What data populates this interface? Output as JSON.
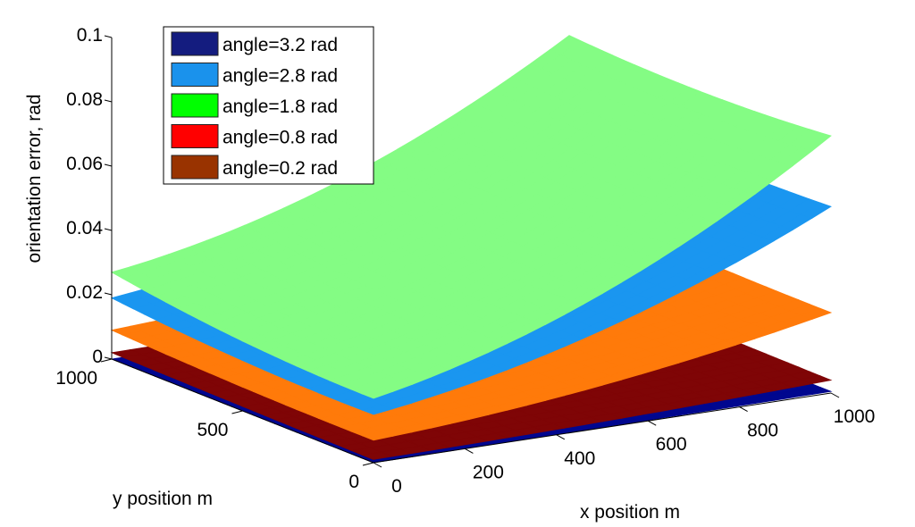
{
  "chart_data": {
    "type": "surface",
    "title": "",
    "xlabel": "x position m",
    "ylabel": "y position m",
    "zlabel": "orientation error, rad",
    "xlim": [
      0,
      1000
    ],
    "ylim": [
      0,
      1000
    ],
    "zlim": [
      0,
      0.1
    ],
    "x_ticks": [
      "0",
      "200",
      "400",
      "600",
      "800",
      "1000"
    ],
    "x_tick_values": [
      0,
      200,
      400,
      600,
      800,
      1000
    ],
    "y_ticks": [
      "0",
      "500",
      "1000"
    ],
    "y_tick_values": [
      0,
      500,
      1000
    ],
    "z_ticks": [
      "0",
      "0.02",
      "0.04",
      "0.06",
      "0.08",
      "0.1"
    ],
    "z_tick_values": [
      0,
      0.02,
      0.04,
      0.06,
      0.08,
      0.1
    ],
    "legend_position": "top-left",
    "series": [
      {
        "name": "angle=3.2 rad",
        "legend_color": "#141c7f",
        "surface_color": "#00078f",
        "corner_z": {
          "x0y0": 0.0,
          "x1000y0": 0.0005,
          "x0y1000": 0.0,
          "x1000y1000": 0.0005
        }
      },
      {
        "name": "angle=2.8 rad",
        "legend_color": "#1a92ec",
        "surface_color": "#1a96f0",
        "corner_z": {
          "x0y0": 0.015,
          "x1000y0": 0.058,
          "x0y1000": 0.019,
          "x1000y1000": 0.059
        }
      },
      {
        "name": "angle=1.8 rad",
        "legend_color": "#00ff00",
        "surface_color": "#84fc84",
        "corner_z": {
          "x0y0": 0.02,
          "x1000y0": 0.08,
          "x0y1000": 0.027,
          "x1000y1000": 0.079
        }
      },
      {
        "name": "angle=0.8 rad",
        "legend_color": "#ff0000",
        "surface_color": "#ff7a0a",
        "corner_z": {
          "x0y0": 0.007,
          "x1000y0": 0.025,
          "x0y1000": 0.009,
          "x1000y1000": 0.027
        }
      },
      {
        "name": "angle=0.2 rad",
        "legend_color": "#993300",
        "surface_color": "#7f0506",
        "corner_z": {
          "x0y0": 0.001,
          "x1000y0": 0.004,
          "x0y1000": 0.002,
          "x1000y1000": 0.005
        }
      }
    ]
  }
}
